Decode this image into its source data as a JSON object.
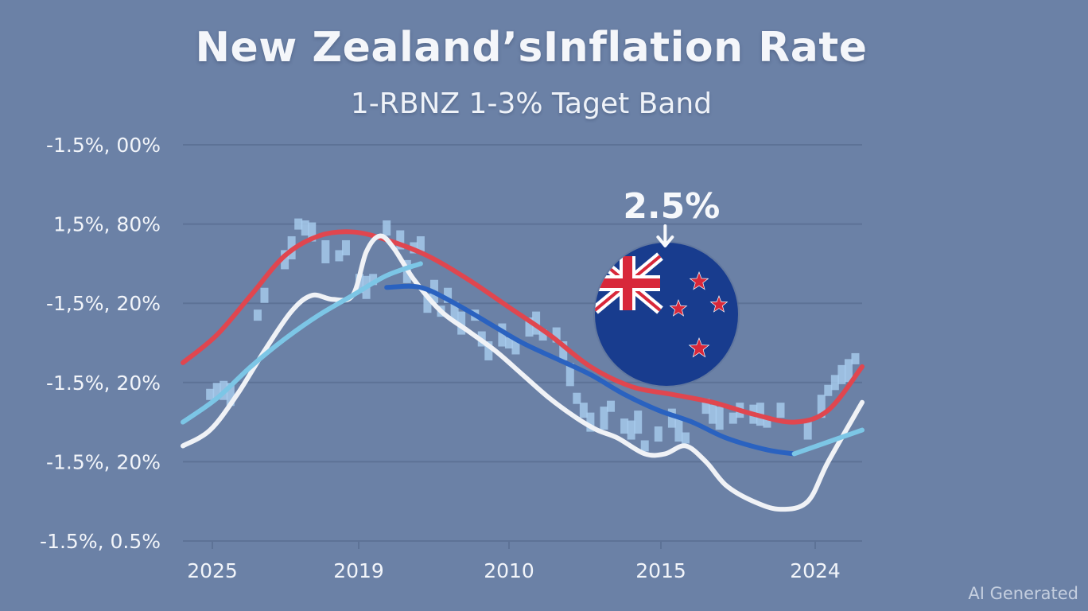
{
  "header": {
    "title": "New Zealand’sInflation Rate",
    "subtitle": "1-RBNZ 1-3% Taget Band"
  },
  "watermark": "AI Generated",
  "chart_data": {
    "type": "line",
    "y_tick_labels": [
      "-1.5%, 00%",
      "1,5%, 80%",
      "-1,5%, 20%",
      "-1.5%, 20%",
      "-1.5%, 20%",
      "-1.5%, 0.5%"
    ],
    "x_tick_labels": [
      "2025",
      "2019",
      "2010",
      "2015",
      "2024"
    ],
    "x_range": [
      0,
      100
    ],
    "y_range": [
      0,
      100
    ],
    "grid": "horizontal",
    "callout": {
      "label": "2.5%",
      "x": 71,
      "y": 78
    },
    "flag": "new-zealand-flag",
    "colors": {
      "background": "#6b81a6",
      "red": "#e0464f",
      "white": "#f0f2f6",
      "light_blue": "#7cc6e6",
      "dark_blue": "#2a62c0",
      "bars": "#a9cdef"
    },
    "series": [
      {
        "color": "#e0464f",
        "x": [
          0,
          5,
          10,
          15,
          20,
          25,
          30,
          36,
          42,
          48,
          54,
          60,
          66,
          72,
          78,
          84,
          90,
          95,
          100
        ],
        "y": [
          45,
          52,
          62,
          72,
          77,
          78,
          76,
          72,
          66,
          59,
          52,
          44,
          39,
          37,
          35,
          32,
          30,
          33,
          44
        ]
      },
      {
        "color": "#f0f2f6",
        "x": [
          0,
          4,
          8,
          12,
          16,
          19,
          22,
          25,
          27,
          29,
          31,
          34,
          38,
          42,
          46,
          50,
          54,
          58,
          61,
          64,
          68,
          71,
          74,
          77,
          80,
          84,
          88,
          92,
          95,
          100
        ],
        "y": [
          24,
          28,
          37,
          48,
          58,
          62,
          61,
          62,
          73,
          77,
          74,
          66,
          58,
          53,
          48,
          42,
          36,
          31,
          28,
          26,
          22,
          22,
          24,
          20,
          14,
          10,
          8,
          10,
          20,
          35
        ]
      },
      {
        "color": "#7cc6e6",
        "x": [
          0,
          5,
          10,
          15,
          20,
          25,
          30,
          35
        ],
        "y": [
          30,
          36,
          44,
          51,
          57,
          62,
          67,
          70
        ]
      },
      {
        "color": "#2a62c0",
        "x": [
          30,
          35,
          40,
          45,
          50,
          55,
          60,
          65,
          70,
          75,
          80,
          86,
          90
        ],
        "y": [
          64,
          64,
          60,
          55,
          50,
          46,
          42,
          37,
          33,
          30,
          26,
          23,
          22
        ]
      },
      {
        "color": "#7cc6e6",
        "x": [
          90,
          95,
          100
        ],
        "y": [
          22,
          25,
          28
        ]
      }
    ],
    "bars": {
      "color": "#a9cdef",
      "x": [
        4,
        5,
        6,
        7,
        11,
        12,
        15,
        16,
        17,
        18,
        19,
        21,
        23,
        24,
        26,
        27,
        28,
        30,
        32,
        33,
        34,
        35,
        36,
        37,
        38,
        39,
        40,
        41,
        43,
        44,
        45,
        47,
        48,
        49,
        51,
        52,
        53,
        55,
        56,
        57,
        58,
        59,
        60,
        62,
        63,
        65,
        66,
        67,
        68,
        70,
        72,
        73,
        74,
        77,
        78,
        79,
        81,
        82,
        84,
        85,
        86,
        88,
        92,
        94,
        95,
        96,
        97,
        98,
        99
      ],
      "y": [
        37,
        38,
        38,
        37,
        57,
        62,
        71,
        74,
        80,
        79,
        78,
        73,
        72,
        74,
        65,
        64,
        66,
        79,
        76,
        68,
        74,
        75,
        60,
        63,
        58,
        62,
        58,
        55,
        57,
        51,
        48,
        52,
        50,
        49,
        54,
        55,
        52,
        52,
        48,
        42,
        36,
        33,
        30,
        31,
        34,
        29,
        28,
        30,
        24,
        27,
        31,
        28,
        26,
        34,
        32,
        31,
        31,
        33,
        32,
        32,
        30,
        33,
        28,
        34,
        38,
        40,
        42,
        43,
        46
      ]
    }
  }
}
